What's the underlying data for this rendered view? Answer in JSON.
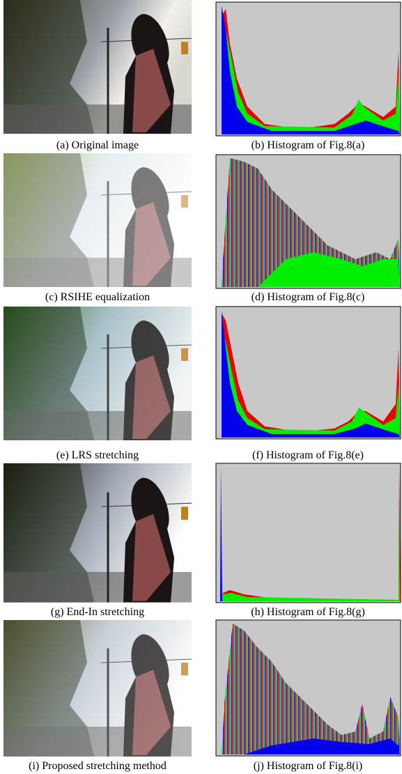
{
  "figure": {
    "panels": [
      {
        "caption": "(a) Original image"
      },
      {
        "caption": "(b) Histogram of Fig.8(a)"
      },
      {
        "caption": "(c) RSIHE equalization"
      },
      {
        "caption": "(d) Histogram of Fig.8(c)"
      },
      {
        "caption": "(e) LRS stretching"
      },
      {
        "caption": "(f) Histogram of Fig.8(e)"
      },
      {
        "caption": "(g) End-In stretching"
      },
      {
        "caption": "(h) Histogram of Fig.8(g)"
      },
      {
        "caption": "(i) Proposed stretching method"
      },
      {
        "caption": "(j) Histogram of Fig.8(i)"
      }
    ]
  }
}
